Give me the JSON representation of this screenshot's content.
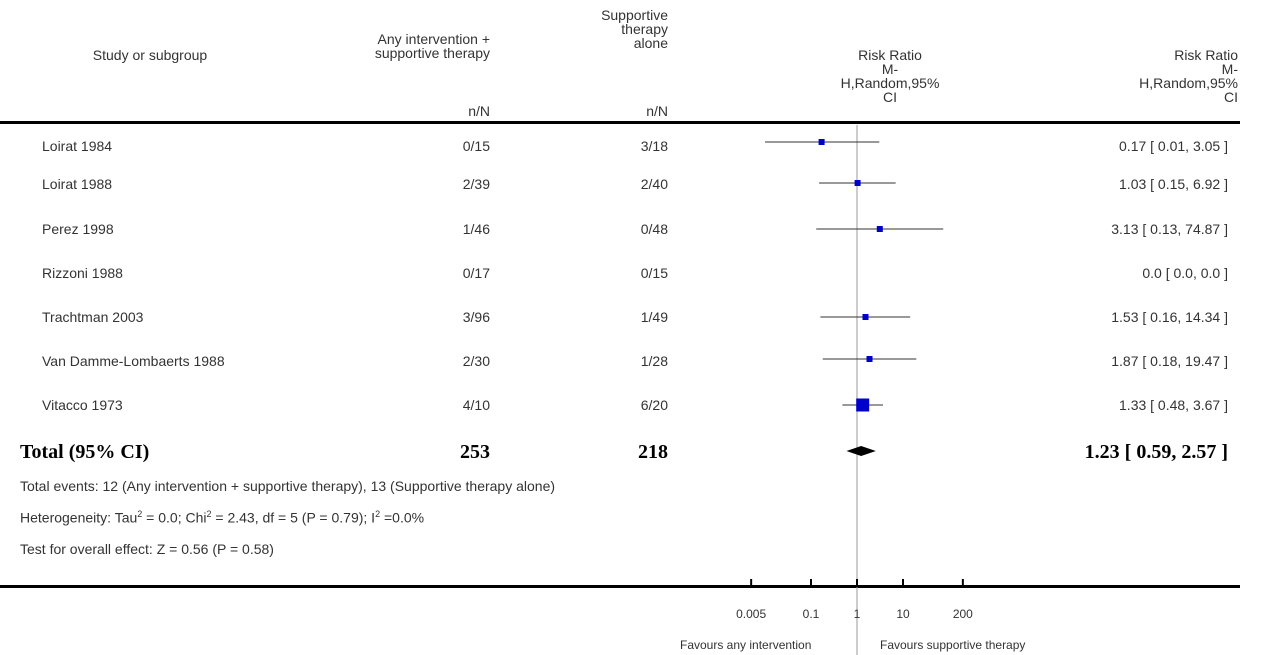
{
  "header": {
    "study_col": "Study or subgroup",
    "treat_col": [
      "Any intervention +",
      "supportive therapy"
    ],
    "control_col": [
      "Supportive",
      "therapy",
      "alone"
    ],
    "treat_nN": "n/N",
    "control_nN": "n/N",
    "plot_col": [
      "Risk Ratio",
      "M-",
      "H,Random,95%",
      "CI"
    ],
    "rr_col": [
      "Risk Ratio",
      "M-",
      "H,Random,95%",
      "CI"
    ]
  },
  "rows": [
    {
      "study": "Loirat 1984",
      "treat": "0/15",
      "control": "3/18",
      "rr_text": "0.17 [ 0.01, 3.05 ]"
    },
    {
      "study": "Loirat 1988",
      "treat": "2/39",
      "control": "2/40",
      "rr_text": "1.03 [ 0.15, 6.92 ]"
    },
    {
      "study": "Perez 1998",
      "treat": "1/46",
      "control": "0/48",
      "rr_text": "3.13 [ 0.13, 74.87 ]"
    },
    {
      "study": "Rizzoni 1988",
      "treat": "0/17",
      "control": "0/15",
      "rr_text": "0.0 [ 0.0, 0.0 ]"
    },
    {
      "study": "Trachtman 2003",
      "treat": "3/96",
      "control": "1/49",
      "rr_text": "1.53 [ 0.16, 14.34 ]"
    },
    {
      "study": "Van Damme-Lombaerts 1988",
      "treat": "2/30",
      "control": "1/28",
      "rr_text": "1.87 [ 0.18, 19.47 ]"
    },
    {
      "study": "Vitacco 1973",
      "treat": "4/10",
      "control": "6/20",
      "rr_text": "1.33 [ 0.48, 3.67 ]"
    }
  ],
  "total": {
    "label": "Total (95% CI)",
    "treat": "253",
    "control": "218",
    "rr_text": "1.23 [ 0.59, 2.57 ]"
  },
  "footnotes": {
    "events": "Total events: 12 (Any intervention + supportive therapy), 13 (Supportive therapy alone)",
    "heterogeneity_prefix": "Heterogeneity: Tau",
    "heterogeneity_mid1": " = 0.0; Chi",
    "heterogeneity_mid2": " = 2.43, df = 5 (P = 0.79); I",
    "heterogeneity_end": " =0.0%",
    "sup2": "2",
    "overall": "Test for overall effect: Z = 0.56 (P = 0.58)"
  },
  "axis": {
    "favours_left": "Favours any intervention",
    "favours_right": "Favours supportive therapy",
    "ticks": [
      {
        "value": 0.005,
        "label": "0.005"
      },
      {
        "value": 0.1,
        "label": "0.1"
      },
      {
        "value": 1,
        "label": "1"
      },
      {
        "value": 10,
        "label": "10"
      },
      {
        "value": 200,
        "label": "200"
      }
    ]
  },
  "chart_data": {
    "type": "forest",
    "scale": "log",
    "xlim": [
      0.005,
      200
    ],
    "null_line": 1,
    "studies": [
      {
        "name": "Loirat 1984",
        "rr": 0.17,
        "lo": 0.01,
        "hi": 3.05,
        "weight_rank": 1
      },
      {
        "name": "Loirat 1988",
        "rr": 1.03,
        "lo": 0.15,
        "hi": 6.92,
        "weight_rank": 1
      },
      {
        "name": "Perez 1998",
        "rr": 3.13,
        "lo": 0.13,
        "hi": 74.87,
        "weight_rank": 1
      },
      {
        "name": "Rizzoni 1988",
        "rr": null,
        "lo": null,
        "hi": null,
        "weight_rank": 0
      },
      {
        "name": "Trachtman 2003",
        "rr": 1.53,
        "lo": 0.16,
        "hi": 14.34,
        "weight_rank": 1
      },
      {
        "name": "Van Damme-Lombaerts 1988",
        "rr": 1.87,
        "lo": 0.18,
        "hi": 19.47,
        "weight_rank": 1
      },
      {
        "name": "Vitacco 1973",
        "rr": 1.33,
        "lo": 0.48,
        "hi": 3.67,
        "weight_rank": 3
      }
    ],
    "pooled": {
      "rr": 1.23,
      "lo": 0.59,
      "hi": 2.57
    },
    "colors": {
      "marker": "#0000CC",
      "line": "#333333",
      "diamond": "#000000"
    }
  }
}
